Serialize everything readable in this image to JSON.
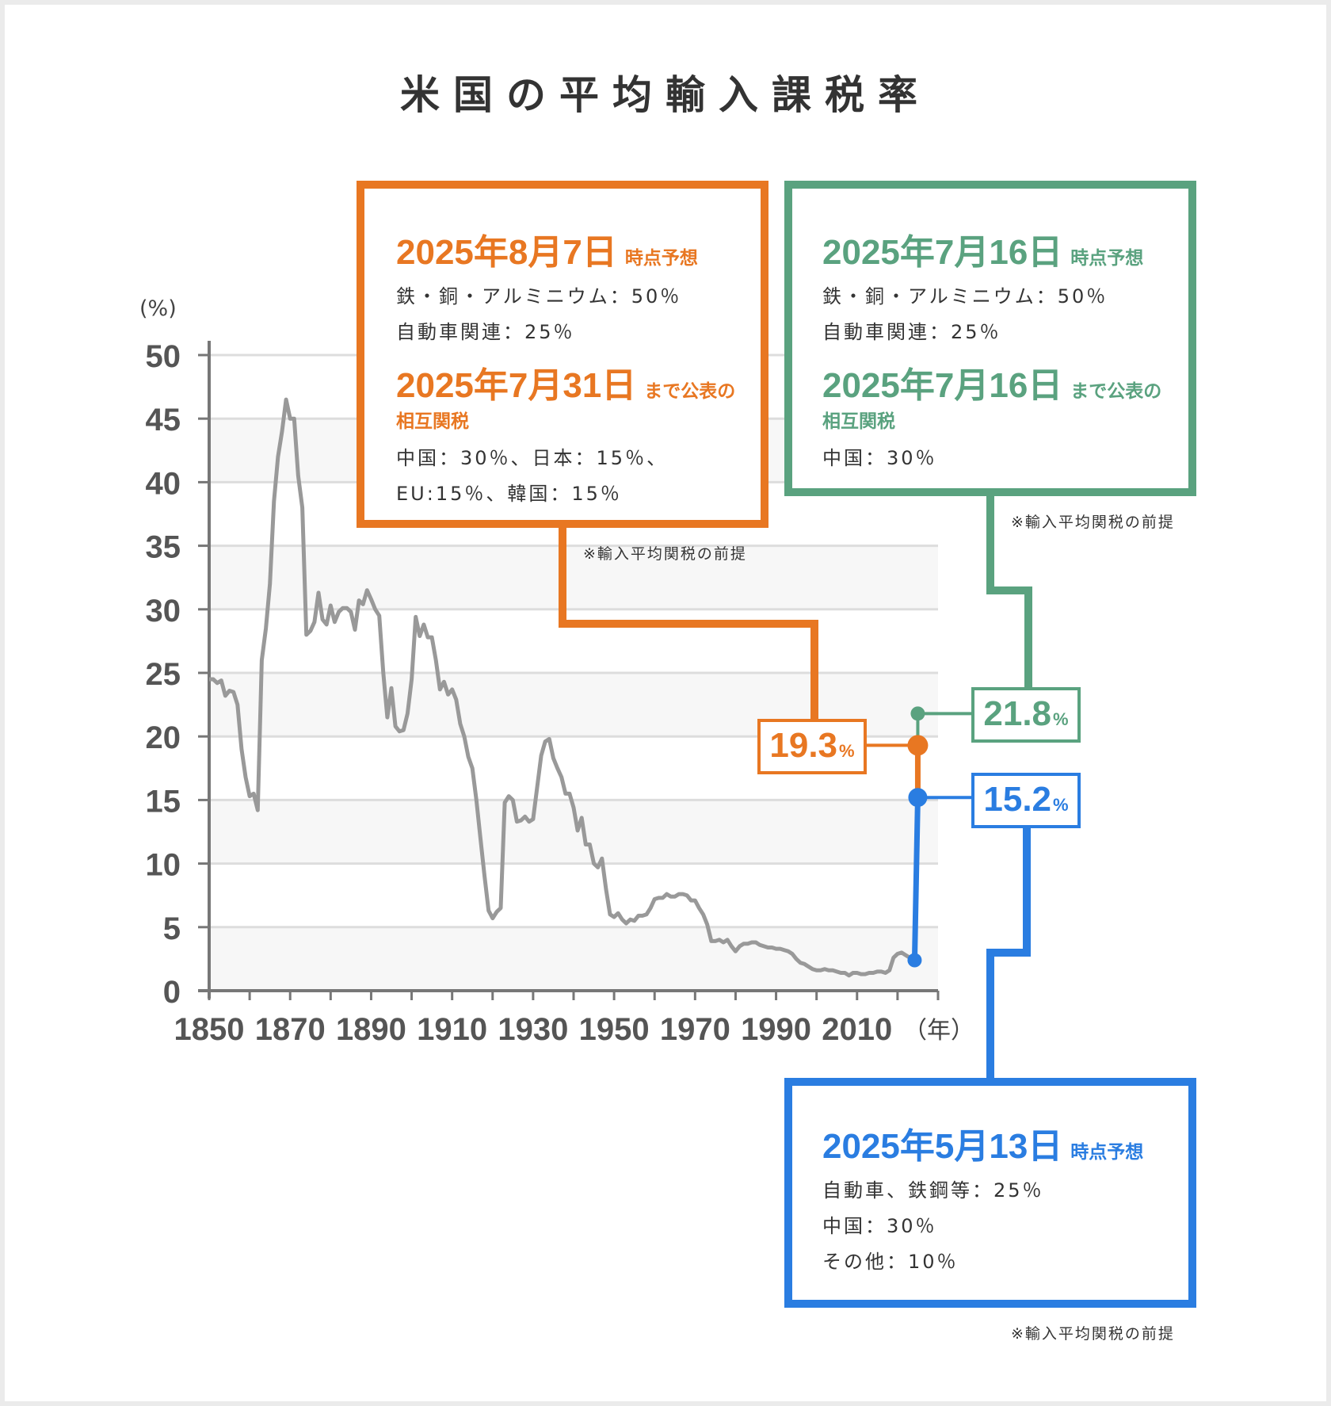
{
  "title": "米国の平均輸入課税率",
  "colors": {
    "orange": "#e87722",
    "green": "#5aa27f",
    "blue": "#2a7de1",
    "history": "#999999"
  },
  "chart_data": {
    "type": "line",
    "ylabel": "(%)",
    "xlabel": "（年）",
    "xlim": [
      1850,
      2030
    ],
    "ylim": [
      0,
      50
    ],
    "x_ticks": [
      1850,
      1870,
      1890,
      1910,
      1930,
      1950,
      1970,
      1990,
      2010
    ],
    "y_ticks": [
      0,
      5,
      10,
      15,
      20,
      25,
      30,
      35,
      40,
      45,
      50
    ],
    "grid": true,
    "series": [
      {
        "name": "",
        "x": [
          1850,
          1851,
          1852,
          1853,
          1854,
          1855,
          1856,
          1857,
          1858,
          1859,
          1860,
          1861,
          1862,
          1863,
          1864,
          1865,
          1866,
          1867,
          1868,
          1869,
          1870,
          1871,
          1872,
          1873,
          1874,
          1875,
          1876,
          1877,
          1878,
          1879,
          1880,
          1881,
          1882,
          1883,
          1884,
          1885,
          1886,
          1887,
          1888,
          1889,
          1890,
          1891,
          1892,
          1893,
          1894,
          1895,
          1896,
          1897,
          1898,
          1899,
          1900,
          1901,
          1902,
          1903,
          1904,
          1905,
          1906,
          1907,
          1908,
          1909,
          1910,
          1911,
          1912,
          1913,
          1914,
          1915,
          1916,
          1917,
          1918,
          1919,
          1920,
          1921,
          1922,
          1923,
          1924,
          1925,
          1926,
          1927,
          1928,
          1929,
          1930,
          1931,
          1932,
          1933,
          1934,
          1935,
          1936,
          1937,
          1938,
          1939,
          1940,
          1941,
          1942,
          1943,
          1944,
          1945,
          1946,
          1947,
          1948,
          1949,
          1950,
          1951,
          1952,
          1953,
          1954,
          1955,
          1956,
          1957,
          1958,
          1959,
          1960,
          1961,
          1962,
          1963,
          1964,
          1965,
          1966,
          1967,
          1968,
          1969,
          1970,
          1971,
          1972,
          1973,
          1974,
          1975,
          1976,
          1977,
          1978,
          1979,
          1980,
          1981,
          1982,
          1983,
          1984,
          1985,
          1986,
          1987,
          1988,
          1989,
          1990,
          1991,
          1992,
          1993,
          1994,
          1995,
          1996,
          1997,
          1998,
          1999,
          2000,
          2001,
          2002,
          2003,
          2004,
          2005,
          2006,
          2007,
          2008,
          2009,
          2010,
          2011,
          2012,
          2013,
          2014,
          2015,
          2016,
          2017,
          2018,
          2019,
          2020,
          2021,
          2022,
          2023,
          2024
        ],
        "y": [
          24.5,
          24.5,
          24.2,
          24.4,
          23.2,
          23.6,
          23.5,
          22.5,
          19.0,
          16.8,
          15.3,
          15.5,
          14.2,
          26.0,
          28.5,
          32.0,
          38.5,
          42.0,
          44.0,
          46.5,
          45.0,
          45.0,
          40.5,
          38.0,
          28.0,
          28.3,
          29.0,
          31.3,
          29.2,
          28.8,
          30.3,
          29.0,
          29.8,
          30.1,
          30.1,
          29.8,
          28.4,
          30.7,
          30.4,
          31.5,
          30.8,
          30.0,
          29.5,
          25.0,
          21.5,
          23.8,
          20.8,
          20.4,
          20.5,
          21.8,
          24.5,
          29.4,
          27.9,
          28.8,
          27.8,
          27.8,
          26.0,
          23.7,
          24.3,
          23.3,
          23.7,
          22.9,
          21.0,
          20.0,
          18.4,
          17.5,
          15.0,
          12.0,
          9.0,
          6.3,
          5.7,
          6.2,
          6.5,
          14.8,
          15.3,
          15.0,
          13.3,
          13.4,
          13.7,
          13.3,
          13.5,
          16.0,
          18.5,
          19.6,
          19.8,
          18.3,
          17.5,
          16.8,
          15.5,
          15.5,
          14.4,
          12.6,
          13.6,
          11.5,
          11.5,
          10.0,
          9.7,
          10.4,
          8.0,
          6.0,
          5.8,
          6.1,
          5.6,
          5.3,
          5.6,
          5.5,
          5.9,
          5.9,
          6.0,
          6.5,
          7.2,
          7.3,
          7.3,
          7.6,
          7.4,
          7.4,
          7.6,
          7.6,
          7.5,
          7.1,
          7.1,
          6.5,
          6.0,
          5.2,
          3.9,
          3.9,
          4.0,
          3.8,
          4.0,
          3.5,
          3.1,
          3.5,
          3.7,
          3.7,
          3.8,
          3.8,
          3.6,
          3.5,
          3.4,
          3.4,
          3.3,
          3.3,
          3.2,
          3.1,
          2.9,
          2.5,
          2.2,
          2.1,
          1.9,
          1.7,
          1.6,
          1.6,
          1.7,
          1.6,
          1.6,
          1.5,
          1.4,
          1.4,
          1.2,
          1.4,
          1.4,
          1.3,
          1.3,
          1.4,
          1.4,
          1.5,
          1.5,
          1.4,
          1.6,
          2.6,
          2.9,
          3.0,
          2.8,
          2.6,
          2.5
        ]
      }
    ],
    "projection_x": 2025,
    "projection_base": 2.4,
    "projections": [
      {
        "value": 21.8,
        "color": "#5aa27f"
      },
      {
        "value": 19.3,
        "color": "#e87722"
      },
      {
        "value": 15.2,
        "color": "#2a7de1"
      }
    ]
  },
  "labels": {
    "green": {
      "num": "21.8",
      "pct": "%"
    },
    "orange": {
      "num": "19.3",
      "pct": "%"
    },
    "blue": {
      "num": "15.2",
      "pct": "%"
    }
  },
  "boxes": {
    "orange": {
      "heading": "2025年8月7日",
      "heading_suffix": "時点予想",
      "lines1": [
        "鉄・銅・アルミニウム：50％",
        "自動車関連：25％"
      ],
      "heading2": "2025年7月31日",
      "heading2_suffix": "まで公表の",
      "heading2_sub": "相互関税",
      "lines2": [
        "中国：30％、日本：15％、",
        "EU:15％、韓国：15％"
      ],
      "note": "※輸入平均関税の前提"
    },
    "green": {
      "heading": "2025年7月16日",
      "heading_suffix": "時点予想",
      "lines1": [
        "鉄・銅・アルミニウム：50％",
        "自動車関連：25％"
      ],
      "heading2": "2025年7月16日",
      "heading2_suffix": "まで公表の",
      "heading2_sub": "相互関税",
      "lines2": [
        "中国：30％"
      ],
      "note": "※輸入平均関税の前提"
    },
    "blue": {
      "heading": "2025年5月13日",
      "heading_suffix": "時点予想",
      "lines1": [
        "自動車、鉄鋼等：25％",
        "中国：30％",
        "その他：10％"
      ],
      "note": "※輸入平均関税の前提"
    }
  }
}
